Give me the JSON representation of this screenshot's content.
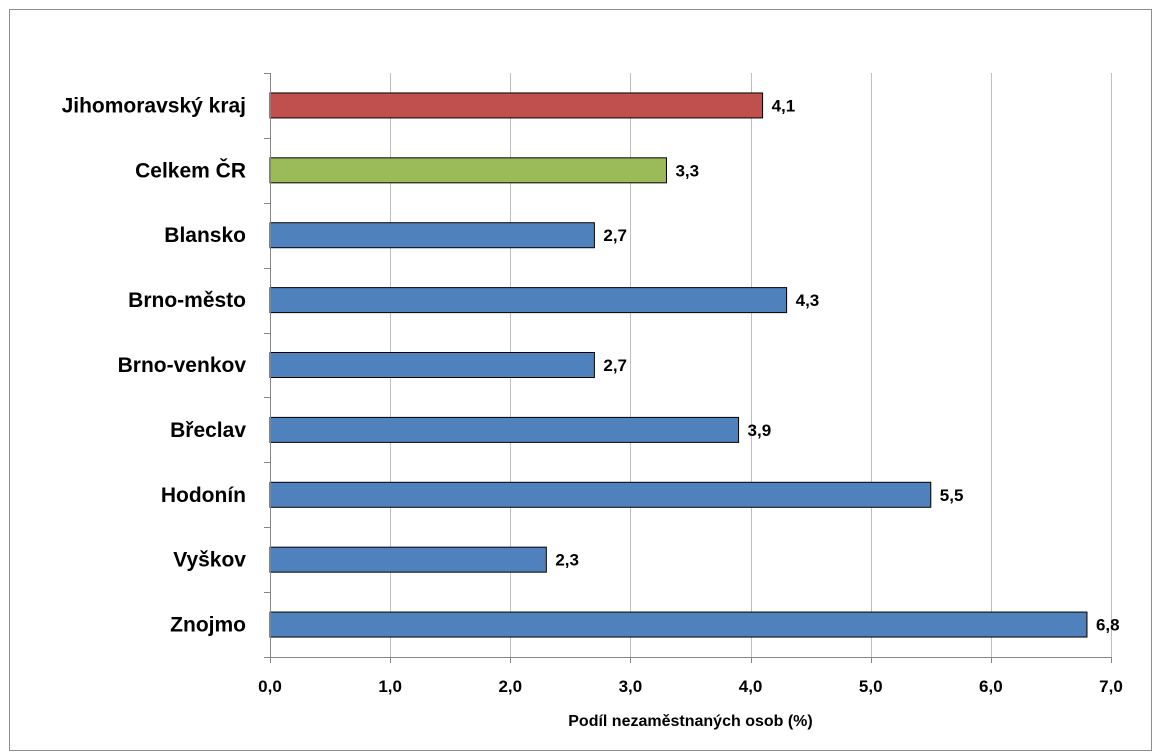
{
  "chart_data": {
    "type": "bar",
    "orientation": "horizontal",
    "categories": [
      "Jihomoravský kraj",
      "Celkem ČR",
      "Blansko",
      "Brno-město",
      "Brno-venkov",
      "Břeclav",
      "Hodonín",
      "Vyškov",
      "Znojmo"
    ],
    "values": [
      4.1,
      3.3,
      2.7,
      4.3,
      2.7,
      3.9,
      5.5,
      2.3,
      6.8
    ],
    "value_labels": [
      "4,1",
      "3,3",
      "2,7",
      "4,3",
      "2,7",
      "3,9",
      "5,5",
      "2,3",
      "6,8"
    ],
    "bar_colors": [
      "#c0504d",
      "#9bbb59",
      "#4f81bd",
      "#4f81bd",
      "#4f81bd",
      "#4f81bd",
      "#4f81bd",
      "#4f81bd",
      "#4f81bd"
    ],
    "xlabel": "Podíl nezaměstnaných osob (%)",
    "ylabel": "",
    "title": "",
    "xlim": [
      0,
      7
    ],
    "xticks": [
      0,
      1,
      2,
      3,
      4,
      5,
      6,
      7
    ],
    "xtick_labels": [
      "0,0",
      "1,0",
      "2,0",
      "3,0",
      "4,0",
      "5,0",
      "6,0",
      "7,0"
    ],
    "grid": "vertical",
    "legend": "none"
  }
}
